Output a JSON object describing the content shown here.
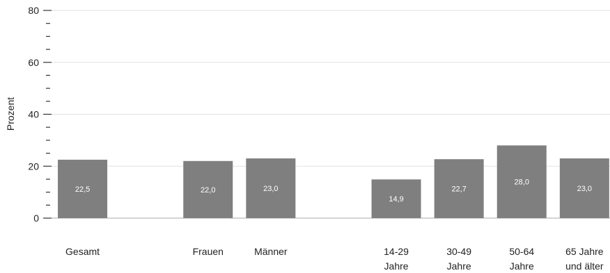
{
  "chart_data": {
    "type": "bar",
    "ylabel": "Prozent",
    "ylim": [
      0,
      80
    ],
    "yticks": [
      0,
      20,
      40,
      60,
      80
    ],
    "grid": true,
    "bar_color": "#7f7f7f",
    "categories": [
      {
        "label_lines": [
          "Gesamt"
        ],
        "value": 22.5,
        "value_label": "22,5"
      },
      {
        "label_lines": [
          "Frauen"
        ],
        "value": 22.0,
        "value_label": "22,0"
      },
      {
        "label_lines": [
          "Männer"
        ],
        "value": 23.0,
        "value_label": "23,0"
      },
      {
        "label_lines": [
          "14-29",
          "Jahre"
        ],
        "value": 14.9,
        "value_label": "14,9"
      },
      {
        "label_lines": [
          "30-49",
          "Jahre"
        ],
        "value": 22.7,
        "value_label": "22,7"
      },
      {
        "label_lines": [
          "50-64",
          "Jahre"
        ],
        "value": 28.0,
        "value_label": "28,0"
      },
      {
        "label_lines": [
          "65 Jahre",
          "und älter"
        ],
        "value": 23.0,
        "value_label": "23,0"
      }
    ]
  }
}
